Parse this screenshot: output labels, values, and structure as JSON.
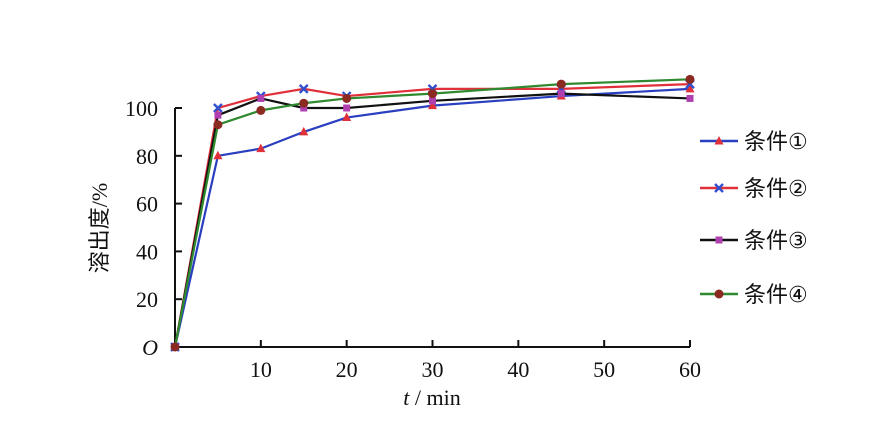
{
  "chart_data": {
    "type": "line",
    "title": "",
    "xlabel_italic": "t",
    "xlabel_rest": " / min",
    "ylabel": "溶出度/%",
    "origin_label": "O",
    "xlim": [
      0,
      60
    ],
    "ylim": [
      0,
      115
    ],
    "xticks": [
      10,
      20,
      30,
      40,
      50,
      60
    ],
    "yticks": [
      20,
      40,
      60,
      80,
      100
    ],
    "legend_position": "right",
    "series": [
      {
        "name": "条件①",
        "color": "#2a3fbf",
        "marker_color": "#e0303a",
        "marker": "triangle",
        "x": [
          0,
          5,
          10,
          15,
          20,
          30,
          45,
          60
        ],
        "y": [
          0,
          80,
          83,
          90,
          96,
          101,
          105,
          108
        ]
      },
      {
        "name": "条件②",
        "color": "#e0303a",
        "marker_color": "#3050d0",
        "marker": "x",
        "x": [
          0,
          5,
          10,
          15,
          20,
          30,
          45,
          60
        ],
        "y": [
          0,
          100,
          105,
          108,
          105,
          108,
          108,
          110
        ]
      },
      {
        "name": "条件③",
        "color": "#111111",
        "marker_color": "#b040b0",
        "marker": "square",
        "x": [
          0,
          5,
          10,
          15,
          20,
          30,
          45,
          60
        ],
        "y": [
          0,
          97,
          104,
          100,
          100,
          103,
          106,
          104
        ]
      },
      {
        "name": "条件④",
        "color": "#2f8a2f",
        "marker_color": "#8b2a20",
        "marker": "circle",
        "x": [
          0,
          5,
          10,
          15,
          20,
          30,
          45,
          60
        ],
        "y": [
          0,
          93,
          99,
          102,
          104,
          106,
          110,
          112
        ]
      }
    ]
  }
}
